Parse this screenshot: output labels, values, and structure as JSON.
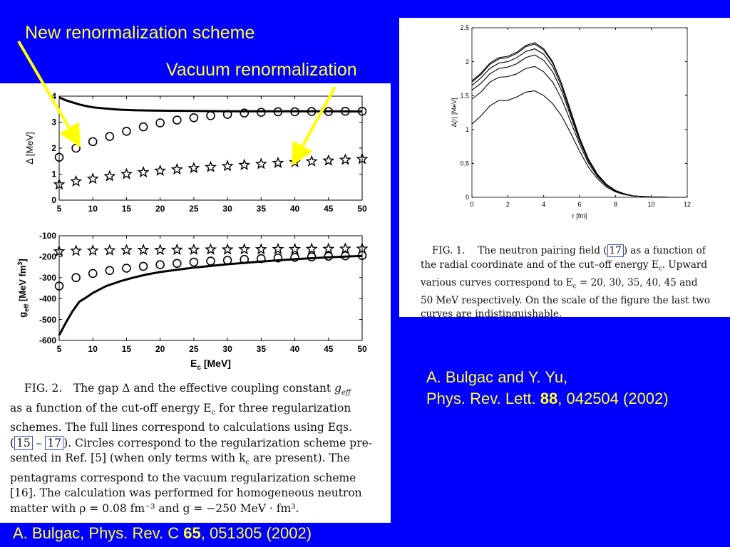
{
  "annotations": {
    "new_scheme": "New renormalization scheme",
    "vacuum": "Vacuum renormalization"
  },
  "references": {
    "left": {
      "prefix": "A. Bulgac, Phys. Rev. C ",
      "bold": "65",
      "suffix": ", 051305 (2002)"
    },
    "right_line1": "A. Bulgac and Y. Yu,",
    "right_line2": {
      "prefix": "Phys. Rev. Lett. ",
      "bold": "88",
      "suffix": ", 042504 (2002)"
    }
  },
  "captions": {
    "fig2": {
      "l1a": "FIG. 2. The gap Δ and the effective coupling constant ",
      "l1b": "g",
      "l1c": "eff",
      "l2": "as a function of the cut-off energy E",
      "l2sub": "c",
      "l2b": " for three regularization",
      "l3": "schemes. The full lines correspond to calculations using Eqs.",
      "l4a": "(",
      "l4ref1": "15",
      "l4dash": " – ",
      "l4ref2": "17",
      "l4b": "). Circles correspond to the regularization scheme pre-",
      "l5": "sented in Ref. [5] (when only terms with k",
      "l5sub": "c",
      "l5b": " are present). The",
      "l6": "pentagrams correspond to the vacuum regularization scheme",
      "l7": "[16]. The calculation was performed for homogeneous neutron",
      "l8": "matter with ρ = 0.08 fm⁻³ and g = −250 MeV · fm³."
    },
    "fig1": {
      "l1a": "FIG. 1.  The neutron pairing field (",
      "l1ref": "17",
      "l1b": ") as a function of",
      "l2": "the radial coordinate and of the cut–off energy E",
      "l2sub": "c",
      "l2b": ". Upward",
      "l3": "various curves correspond to E",
      "l3sub": "c",
      "l3b": " = 20, 30, 35, 40, 45 and",
      "l4": "50 MeV respectively. On the scale of the figure the last two",
      "l5": "curves are indistinguishable."
    }
  },
  "chart_data": [
    {
      "id": "gap",
      "type": "scatter",
      "ylabel": "Δ [MeV]",
      "xlim": [
        5,
        50
      ],
      "ylim": [
        0,
        4
      ],
      "xticks": [
        5,
        10,
        15,
        20,
        25,
        30,
        35,
        40,
        45,
        50
      ],
      "yticks": [
        0,
        1,
        2,
        3,
        4
      ],
      "series": [
        {
          "marker": "line",
          "x": [
            5,
            6,
            7,
            8,
            9,
            10,
            12,
            14,
            16,
            18,
            20,
            25,
            30,
            35,
            40,
            45,
            50
          ],
          "y": [
            3.95,
            3.84,
            3.76,
            3.68,
            3.62,
            3.57,
            3.52,
            3.48,
            3.46,
            3.45,
            3.44,
            3.43,
            3.42,
            3.42,
            3.42,
            3.42,
            3.41
          ]
        },
        {
          "marker": "circle",
          "x": [
            5,
            7.5,
            10,
            12.5,
            15,
            17.5,
            20,
            22.5,
            25,
            27.5,
            30,
            32.5,
            35,
            37.5,
            40,
            42.5,
            45,
            47.5,
            50
          ],
          "y": [
            1.65,
            2.0,
            2.25,
            2.45,
            2.65,
            2.82,
            2.97,
            3.08,
            3.17,
            3.25,
            3.3,
            3.35,
            3.38,
            3.4,
            3.4,
            3.41,
            3.41,
            3.42,
            3.42
          ]
        },
        {
          "marker": "star",
          "x": [
            5,
            7.5,
            10,
            12.5,
            15,
            17.5,
            20,
            22.5,
            25,
            27.5,
            30,
            32.5,
            35,
            37.5,
            40,
            42.5,
            45,
            47.5,
            50
          ],
          "y": [
            0.6,
            0.72,
            0.82,
            0.92,
            1.0,
            1.07,
            1.13,
            1.18,
            1.23,
            1.27,
            1.31,
            1.35,
            1.39,
            1.43,
            1.46,
            1.49,
            1.52,
            1.55,
            1.58
          ]
        }
      ]
    },
    {
      "id": "geff",
      "type": "scatter",
      "xlabel": "E",
      "xlabel_sub": "c",
      "xlabel_unit": " [MeV]",
      "ylabel": "g",
      "ylabel_sub": "eff",
      "ylabel_unit": " [MeV fm",
      "ylabel_sup": "3",
      "ylabel_end": "]",
      "xlim": [
        5,
        50
      ],
      "ylim": [
        -600,
        -100
      ],
      "xticks": [
        5,
        10,
        15,
        20,
        25,
        30,
        35,
        40,
        45,
        50
      ],
      "yticks": [
        -600,
        -500,
        -400,
        -300,
        -200,
        -100
      ],
      "series": [
        {
          "marker": "line",
          "x": [
            5,
            6,
            7,
            8,
            9,
            10,
            12,
            14,
            16,
            18,
            20,
            25,
            30,
            35,
            40,
            45,
            50
          ],
          "y": [
            -575,
            -515,
            -460,
            -415,
            -395,
            -373,
            -340,
            -318,
            -300,
            -285,
            -273,
            -252,
            -236,
            -223,
            -212,
            -203,
            -196
          ]
        },
        {
          "marker": "circle",
          "x": [
            5,
            7.5,
            10,
            12.5,
            15,
            17.5,
            20,
            22.5,
            25,
            27.5,
            30,
            32.5,
            35,
            37.5,
            40,
            42.5,
            45,
            47.5,
            50
          ],
          "y": [
            -340,
            -300,
            -280,
            -266,
            -255,
            -246,
            -238,
            -232,
            -226,
            -221,
            -217,
            -213,
            -209,
            -206,
            -203,
            -201,
            -198,
            -196,
            -194
          ]
        },
        {
          "marker": "star",
          "x": [
            5,
            7.5,
            10,
            12.5,
            15,
            17.5,
            20,
            22.5,
            25,
            27.5,
            30,
            32.5,
            35,
            37.5,
            40,
            42.5,
            45,
            47.5,
            50
          ],
          "y": [
            -175,
            -172,
            -171,
            -170,
            -169,
            -168,
            -168,
            -167,
            -167,
            -166,
            -166,
            -165,
            -165,
            -164,
            -164,
            -163,
            -163,
            -162,
            -162
          ]
        }
      ]
    },
    {
      "id": "pairing",
      "type": "line",
      "xlabel": "r [fm]",
      "ylabel": "Δ(r) [MeV]",
      "xlim": [
        0,
        12
      ],
      "ylim": [
        0,
        2.5
      ],
      "xticks": [
        0,
        2,
        4,
        6,
        8,
        10,
        12
      ],
      "yticks": [
        0,
        0.5,
        1,
        1.5,
        2,
        2.5
      ],
      "series": [
        {
          "name": "Ec = 20 MeV",
          "x": [
            0,
            0.5,
            1,
            1.5,
            2,
            2.5,
            3,
            3.5,
            4,
            4.5,
            5,
            5.5,
            6,
            6.5,
            7,
            7.5,
            8,
            8.5,
            9,
            10,
            11,
            12
          ],
          "y": [
            1.08,
            1.2,
            1.35,
            1.43,
            1.43,
            1.48,
            1.55,
            1.57,
            1.5,
            1.38,
            1.2,
            0.95,
            0.68,
            0.44,
            0.27,
            0.15,
            0.08,
            0.04,
            0.02,
            0.005,
            0.0,
            0.0
          ]
        },
        {
          "name": "Ec = 30 MeV",
          "x": [
            0,
            0.5,
            1,
            1.5,
            2,
            2.5,
            3,
            3.5,
            4,
            4.5,
            5,
            5.5,
            6,
            6.5,
            7,
            7.5,
            8,
            8.5,
            9,
            10,
            11,
            12
          ],
          "y": [
            1.45,
            1.55,
            1.7,
            1.77,
            1.78,
            1.82,
            1.9,
            1.93,
            1.85,
            1.7,
            1.45,
            1.12,
            0.78,
            0.5,
            0.3,
            0.17,
            0.09,
            0.05,
            0.02,
            0.005,
            0.0,
            0.0
          ]
        },
        {
          "name": "Ec = 35 MeV",
          "x": [
            0,
            0.5,
            1,
            1.5,
            2,
            2.5,
            3,
            3.5,
            4,
            4.5,
            5,
            5.5,
            6,
            6.5,
            7,
            7.5,
            8,
            8.5,
            9,
            10,
            11,
            12
          ],
          "y": [
            1.58,
            1.68,
            1.82,
            1.9,
            1.92,
            1.97,
            2.06,
            2.1,
            2.02,
            1.85,
            1.57,
            1.2,
            0.83,
            0.53,
            0.32,
            0.18,
            0.09,
            0.05,
            0.02,
            0.005,
            0.0,
            0.0
          ]
        },
        {
          "name": "Ec = 40 MeV",
          "x": [
            0,
            0.5,
            1,
            1.5,
            2,
            2.5,
            3,
            3.5,
            4,
            4.5,
            5,
            5.5,
            6,
            6.5,
            7,
            7.5,
            8,
            8.5,
            9,
            10,
            11,
            12
          ],
          "y": [
            1.65,
            1.76,
            1.9,
            1.98,
            2.0,
            2.06,
            2.15,
            2.19,
            2.11,
            1.93,
            1.63,
            1.24,
            0.86,
            0.55,
            0.33,
            0.18,
            0.1,
            0.05,
            0.02,
            0.005,
            0.0,
            0.0
          ]
        },
        {
          "name": "Ec = 45 MeV",
          "x": [
            0,
            0.5,
            1,
            1.5,
            2,
            2.5,
            3,
            3.5,
            4,
            4.5,
            5,
            5.5,
            6,
            6.5,
            7,
            7.5,
            8,
            8.5,
            9,
            10,
            11,
            12
          ],
          "y": [
            1.7,
            1.81,
            1.96,
            2.04,
            2.06,
            2.12,
            2.22,
            2.26,
            2.17,
            1.98,
            1.67,
            1.27,
            0.87,
            0.56,
            0.33,
            0.19,
            0.1,
            0.05,
            0.02,
            0.005,
            0.0,
            0.0
          ]
        },
        {
          "name": "Ec = 50 MeV",
          "x": [
            0,
            0.5,
            1,
            1.5,
            2,
            2.5,
            3,
            3.5,
            4,
            4.5,
            5,
            5.5,
            6,
            6.5,
            7,
            7.5,
            8,
            8.5,
            9,
            10,
            11,
            12
          ],
          "y": [
            1.72,
            1.83,
            1.98,
            2.06,
            2.08,
            2.14,
            2.24,
            2.28,
            2.19,
            2.0,
            1.68,
            1.28,
            0.88,
            0.56,
            0.34,
            0.19,
            0.1,
            0.05,
            0.02,
            0.005,
            0.0,
            0.0
          ]
        }
      ]
    }
  ],
  "colors": {
    "background": "#0000ff",
    "annotation": "#ffff33",
    "arrow": "#ffff00",
    "panel": "#ffffff",
    "ink": "#000000",
    "ref_box": "#3355cc"
  }
}
